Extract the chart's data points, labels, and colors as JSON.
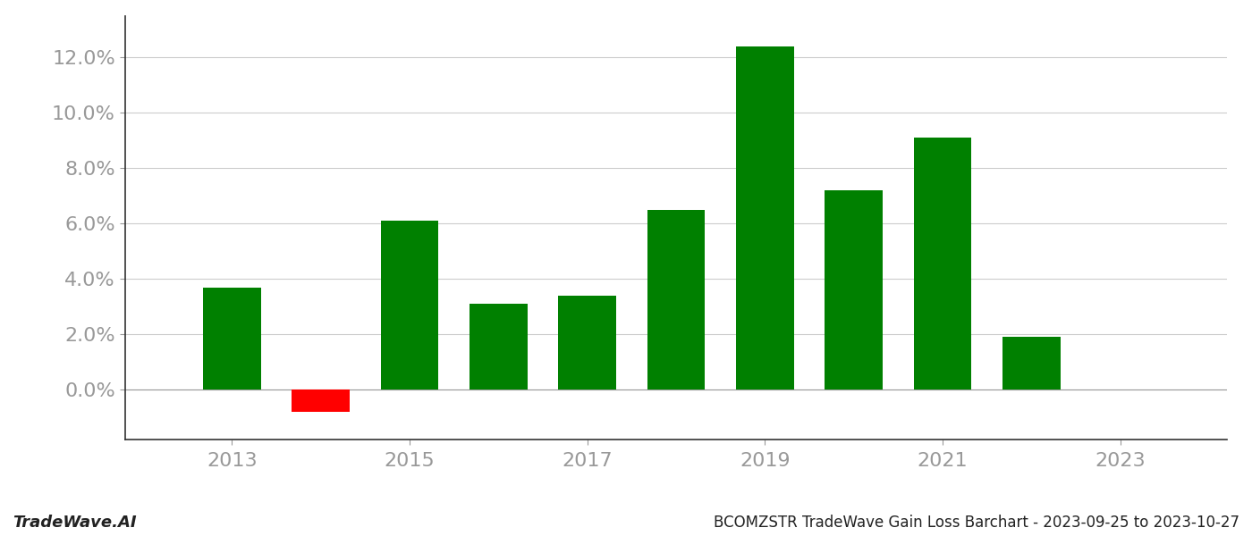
{
  "years": [
    2013,
    2014,
    2015,
    2016,
    2017,
    2018,
    2019,
    2020,
    2021,
    2022,
    2023
  ],
  "values": [
    0.037,
    -0.008,
    0.061,
    0.031,
    0.034,
    0.065,
    0.124,
    0.072,
    0.091,
    0.019,
    null
  ],
  "bar_colors": [
    "#008000",
    "#ff0000",
    "#008000",
    "#008000",
    "#008000",
    "#008000",
    "#008000",
    "#008000",
    "#008000",
    "#008000",
    null
  ],
  "title": "BCOMZSTR TradeWave Gain Loss Barchart - 2023-09-25 to 2023-10-27",
  "watermark": "TradeWave.AI",
  "ylim_min": -0.018,
  "ylim_max": 0.135,
  "yticks": [
    0.0,
    0.02,
    0.04,
    0.06,
    0.08,
    0.1,
    0.12
  ],
  "background_color": "#ffffff",
  "grid_color": "#cccccc",
  "bar_width": 0.65,
  "title_fontsize": 12,
  "watermark_fontsize": 13,
  "tick_fontsize": 16,
  "axis_color": "#999999",
  "spine_color": "#333333"
}
